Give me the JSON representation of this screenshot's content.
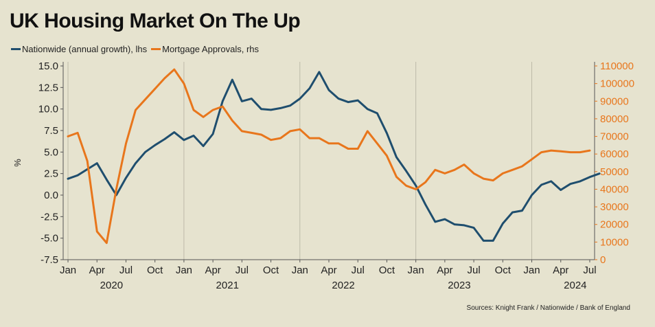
{
  "title": "UK Housing Market On The Up",
  "legend": [
    {
      "label": "Nationwide (annual growth), lhs",
      "color": "#1f4e6e"
    },
    {
      "label": "Mortgage Approvals, rhs",
      "color": "#e8761c"
    }
  ],
  "source": "Sources: Knight Frank / Nationwide / Bank of England",
  "chart_data": {
    "type": "line",
    "title": "UK Housing Market On The Up",
    "ylabel": "%",
    "ylim_left": [
      -7.5,
      15
    ],
    "left_ticks": [
      -7.5,
      -5,
      -2.5,
      0,
      2.5,
      5,
      7.5,
      10,
      12.5,
      15
    ],
    "left_tick_labels": [
      "-7.5",
      "-5.0",
      "-2.5",
      "0.0",
      "2.5",
      "5.0",
      "7.5",
      "10.0",
      "12.5",
      "15.0"
    ],
    "ylim_right": [
      0,
      110000
    ],
    "right_ticks": [
      0,
      10000,
      20000,
      30000,
      40000,
      50000,
      60000,
      70000,
      80000,
      90000,
      100000,
      110000
    ],
    "right_tick_labels": [
      "0",
      "10000",
      "20000",
      "30000",
      "40000",
      "50000",
      "60000",
      "70000",
      "80000",
      "90000",
      "100000",
      "110000"
    ],
    "x_tick_labels": [
      {
        "m": 0,
        "label": "Jan"
      },
      {
        "m": 3,
        "label": "Apr"
      },
      {
        "m": 6,
        "label": "Jul"
      },
      {
        "m": 9,
        "label": "Oct"
      },
      {
        "m": 12,
        "label": "Jan"
      },
      {
        "m": 15,
        "label": "Apr"
      },
      {
        "m": 18,
        "label": "Jul"
      },
      {
        "m": 21,
        "label": "Oct"
      },
      {
        "m": 24,
        "label": "Jan"
      },
      {
        "m": 27,
        "label": "Apr"
      },
      {
        "m": 30,
        "label": "Jul"
      },
      {
        "m": 33,
        "label": "Oct"
      },
      {
        "m": 36,
        "label": "Jan"
      },
      {
        "m": 39,
        "label": "Apr"
      },
      {
        "m": 42,
        "label": "Jul"
      },
      {
        "m": 45,
        "label": "Oct"
      },
      {
        "m": 48,
        "label": "Jan"
      },
      {
        "m": 51,
        "label": "Apr"
      },
      {
        "m": 54,
        "label": "Jul"
      }
    ],
    "year_labels": [
      {
        "m": 4.5,
        "label": "2020"
      },
      {
        "m": 16.5,
        "label": "2021"
      },
      {
        "m": 28.5,
        "label": "2022"
      },
      {
        "m": 40.5,
        "label": "2023"
      },
      {
        "m": 52.5,
        "label": "2024"
      }
    ],
    "series": [
      {
        "name": "Nationwide (annual growth), lhs",
        "axis": "left",
        "color": "#1f4e6e",
        "start_month": 0,
        "values": [
          1.9,
          2.3,
          3.0,
          3.7,
          1.8,
          0.0,
          2.0,
          3.7,
          5.0,
          5.8,
          6.5,
          7.3,
          6.4,
          6.9,
          5.7,
          7.1,
          10.9,
          13.4,
          10.9,
          11.2,
          10.0,
          9.9,
          10.1,
          10.4,
          11.2,
          12.4,
          14.3,
          12.2,
          11.2,
          10.8,
          11.0,
          10.0,
          9.5,
          7.2,
          4.4,
          2.8,
          1.1,
          -1.1,
          -3.1,
          -2.8,
          -3.4,
          -3.5,
          -3.8,
          -5.3,
          -5.3,
          -3.3,
          -2.0,
          -1.8,
          0.0,
          1.2,
          1.6,
          0.6,
          1.3,
          1.6,
          2.1,
          2.5
        ]
      },
      {
        "name": "Mortgage Approvals, rhs",
        "axis": "right",
        "color": "#e8761c",
        "start_month": 0,
        "values": [
          70000,
          72000,
          56000,
          16000,
          9500,
          40000,
          66000,
          85000,
          91000,
          97000,
          103000,
          108000,
          100000,
          85000,
          81000,
          85000,
          87000,
          79000,
          73000,
          72000,
          71000,
          68000,
          69000,
          73000,
          74000,
          69000,
          69000,
          66000,
          66000,
          63000,
          63000,
          73000,
          66000,
          59000,
          47000,
          42000,
          40000,
          44000,
          51000,
          49000,
          51000,
          54000,
          49000,
          46000,
          45000,
          49000,
          51000,
          53000,
          57000,
          61000,
          62000,
          61500,
          61000,
          61000,
          62000
        ]
      }
    ]
  }
}
